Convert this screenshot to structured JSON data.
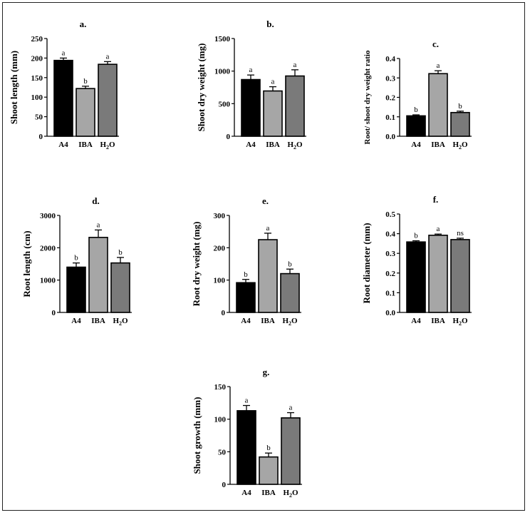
{
  "figure": {
    "colors": {
      "A4": "#000000",
      "IBA": "#a6a6a6",
      "H2O": "#7a7a7a"
    }
  },
  "chart_data": [
    {
      "type": "bar",
      "panel": "a.",
      "ylabel": "Shoot length (mm)",
      "categories": [
        "A4",
        "IBA",
        "H2O"
      ],
      "values": [
        194,
        122,
        184
      ],
      "errors": [
        6,
        6,
        7
      ],
      "significance": [
        "a",
        "b",
        "a"
      ],
      "ylim": [
        0,
        250
      ],
      "yticks": [
        0,
        50,
        100,
        150,
        200,
        250
      ]
    },
    {
      "type": "bar",
      "panel": "b.",
      "ylabel": "Shoot dry weight (mg)",
      "categories": [
        "A4",
        "IBA",
        "H2O"
      ],
      "values": [
        870,
        695,
        925
      ],
      "errors": [
        70,
        65,
        95
      ],
      "significance": [
        "a",
        "a",
        "a"
      ],
      "ylim": [
        0,
        1500
      ],
      "yticks": [
        0,
        500,
        1000,
        1500
      ]
    },
    {
      "type": "bar",
      "panel": "c.",
      "ylabel": "Root/ shoot dry weight ratio",
      "categories": [
        "A4",
        "IBA",
        "H2O"
      ],
      "values": [
        0.105,
        0.322,
        0.122
      ],
      "errors": [
        0.005,
        0.015,
        0.007
      ],
      "significance": [
        "b",
        "a",
        "b"
      ],
      "ylim": [
        0,
        0.4
      ],
      "yticks": [
        0.0,
        0.1,
        0.2,
        0.3,
        0.4
      ]
    },
    {
      "type": "bar",
      "panel": "d.",
      "ylabel": "Root length (cm)",
      "categories": [
        "A4",
        "IBA",
        "H2O"
      ],
      "values": [
        1400,
        2320,
        1530
      ],
      "errors": [
        130,
        230,
        170
      ],
      "significance": [
        "b",
        "a",
        "b"
      ],
      "ylim": [
        0,
        3000
      ],
      "yticks": [
        0,
        1000,
        2000,
        3000
      ]
    },
    {
      "type": "bar",
      "panel": "e.",
      "ylabel": "Root dry weight (mg)",
      "categories": [
        "A4",
        "IBA",
        "H2O"
      ],
      "values": [
        92,
        225,
        120
      ],
      "errors": [
        10,
        20,
        14
      ],
      "significance": [
        "b",
        "a",
        "b"
      ],
      "ylim": [
        0,
        300
      ],
      "yticks": [
        0,
        100,
        200,
        300
      ]
    },
    {
      "type": "bar",
      "panel": "f.",
      "ylabel": "Root diameter (mm)",
      "categories": [
        "A4",
        "IBA",
        "H2O"
      ],
      "values": [
        0.358,
        0.392,
        0.37
      ],
      "errors": [
        0.006,
        0.006,
        0.007
      ],
      "significance": [
        "b",
        "a",
        "ns"
      ],
      "ylim": [
        0,
        0.5
      ],
      "yticks": [
        0.0,
        0.1,
        0.2,
        0.3,
        0.4,
        0.5
      ]
    },
    {
      "type": "bar",
      "panel": "g.",
      "ylabel": "Shoot growth (mm)",
      "categories": [
        "A4",
        "IBA",
        "H2O"
      ],
      "values": [
        113,
        42,
        102
      ],
      "errors": [
        8,
        6,
        8
      ],
      "significance": [
        "a",
        "b",
        "a"
      ],
      "ylim": [
        0,
        150
      ],
      "yticks": [
        0,
        50,
        100,
        150
      ]
    }
  ]
}
